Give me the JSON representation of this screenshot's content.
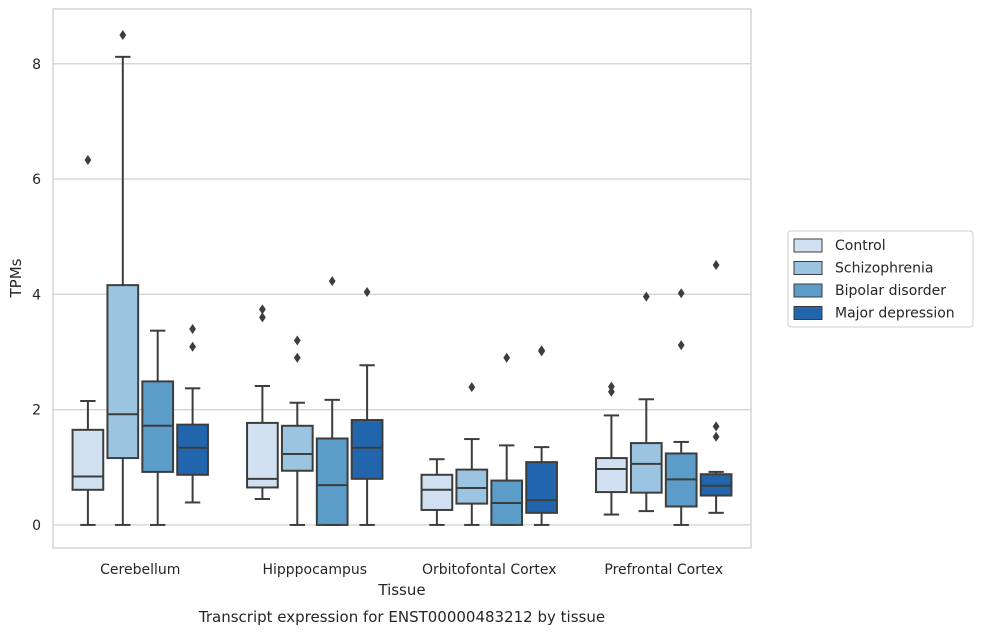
{
  "chart_data": {
    "type": "box",
    "title": "",
    "caption": "Transcript expression for ENST00000483212 by tissue",
    "xlabel": "Tissue",
    "ylabel": "TPMs",
    "ylim": [
      -0.4,
      8.95
    ],
    "yticks": [
      0,
      2,
      4,
      6,
      8
    ],
    "grid": "horizontal",
    "legend_position": "right",
    "categories": [
      "Cerebellum",
      "Hipppocampus",
      "Orbitofontal Cortex",
      "Prefrontal Cortex"
    ],
    "series": [
      {
        "name": "Control",
        "color": "#d1e1f1",
        "boxes": [
          {
            "whislo": 0,
            "q1": 0.61,
            "med": 0.84,
            "q3": 1.65,
            "whishi": 2.15,
            "fliers": [
              6.33
            ]
          },
          {
            "whislo": 0.45,
            "q1": 0.65,
            "med": 0.8,
            "q3": 1.77,
            "whishi": 2.41,
            "fliers": [
              3.6,
              3.74
            ]
          },
          {
            "whislo": 0,
            "q1": 0.26,
            "med": 0.61,
            "q3": 0.87,
            "whishi": 1.14,
            "fliers": []
          },
          {
            "whislo": 0.18,
            "q1": 0.57,
            "med": 0.97,
            "q3": 1.16,
            "whishi": 1.9,
            "fliers": [
              2.31,
              2.4
            ]
          }
        ]
      },
      {
        "name": "Schizophrenia",
        "color": "#9ac4df",
        "boxes": [
          {
            "whislo": 0,
            "q1": 1.16,
            "med": 1.92,
            "q3": 4.16,
            "whishi": 8.12,
            "fliers": [
              8.5
            ]
          },
          {
            "whislo": 0,
            "q1": 0.94,
            "med": 1.23,
            "q3": 1.72,
            "whishi": 2.12,
            "fliers": [
              2.9,
              3.2
            ]
          },
          {
            "whislo": 0,
            "q1": 0.37,
            "med": 0.64,
            "q3": 0.96,
            "whishi": 1.49,
            "fliers": [
              2.39
            ]
          },
          {
            "whislo": 0.24,
            "q1": 0.56,
            "med": 1.06,
            "q3": 1.42,
            "whishi": 2.18,
            "fliers": [
              3.96
            ]
          }
        ]
      },
      {
        "name": "Bipolar disorder",
        "color": "#5b9cc9",
        "boxes": [
          {
            "whislo": 0,
            "q1": 0.92,
            "med": 1.72,
            "q3": 2.49,
            "whishi": 3.37,
            "fliers": []
          },
          {
            "whislo": 0,
            "q1": 0,
            "med": 0.69,
            "q3": 1.5,
            "whishi": 2.17,
            "fliers": [
              4.23
            ]
          },
          {
            "whislo": 0,
            "q1": 0,
            "med": 0.38,
            "q3": 0.77,
            "whishi": 1.38,
            "fliers": [
              2.9
            ]
          },
          {
            "whislo": 0,
            "q1": 0.32,
            "med": 0.79,
            "q3": 1.24,
            "whishi": 1.44,
            "fliers": [
              3.12,
              4.02
            ]
          }
        ]
      },
      {
        "name": "Major depression",
        "color": "#2166ac",
        "boxes": [
          {
            "whislo": 0.39,
            "q1": 0.87,
            "med": 1.34,
            "q3": 1.74,
            "whishi": 2.37,
            "fliers": [
              3.09,
              3.4
            ]
          },
          {
            "whislo": 0,
            "q1": 0.8,
            "med": 1.34,
            "q3": 1.82,
            "whishi": 2.77,
            "fliers": [
              4.04
            ]
          },
          {
            "whislo": 0,
            "q1": 0.21,
            "med": 0.43,
            "q3": 1.09,
            "whishi": 1.35,
            "fliers": [
              3.01,
              3.03
            ]
          },
          {
            "whislo": 0.21,
            "q1": 0.51,
            "med": 0.68,
            "q3": 0.88,
            "whishi": 0.92,
            "fliers": [
              1.53,
              1.71,
              4.51
            ]
          }
        ]
      }
    ]
  }
}
